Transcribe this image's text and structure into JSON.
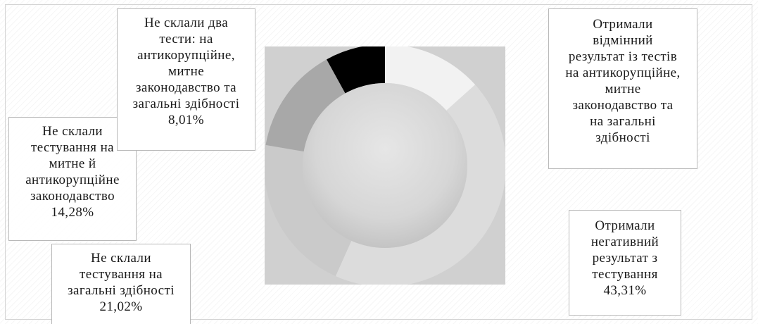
{
  "chart_data": {
    "type": "pie",
    "variant": "donut",
    "categories": [
      "Отримали відмінний результат із тестів на антикорупційне, митне законодавство та на загальні здібності",
      "Отримали негативний результат з тестування",
      "Не склали тестування на загальні здібності",
      "Не склали тестування на митне й антикорупційне законодавство",
      "Не склали два тести: на антикорупційне, митне законодавство та загальні здібності"
    ],
    "values": [
      13.38,
      43.31,
      21.02,
      14.28,
      8.01
    ],
    "colors": [
      "#f2f2f2",
      "#dcdcdc",
      "#cacaca",
      "#a8a8a8",
      "#000000"
    ],
    "slice_labels": [
      "Отримали відмінний результат із тестів на антикорупційне, митне законодавство та на загальні здібності",
      "Отримали негативний результат з тестування 43,31%",
      "Не склали тестування на загальні здібності 21,02%",
      "Не склали тестування на митне й антикорупційне законодавство 14,28%",
      "Не склали два тести: на антикорупційне, митне законодавство та загальні здібності 8,01%"
    ],
    "start_angle_deg": 0,
    "direction": "clockwise",
    "legend": "none"
  }
}
